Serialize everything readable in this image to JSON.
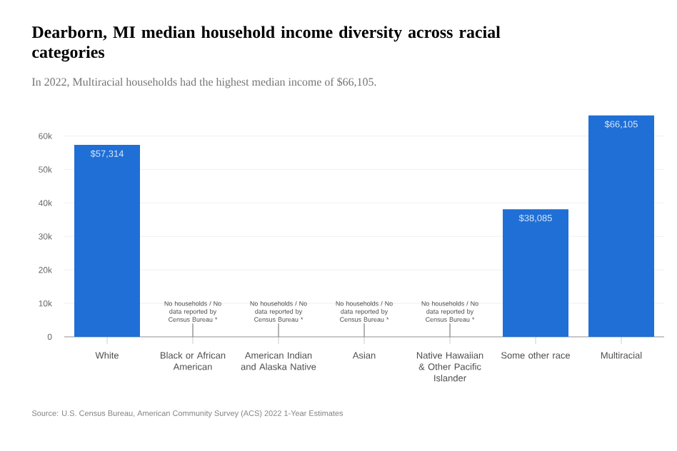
{
  "chart_data": {
    "type": "bar",
    "title": "Dearborn, MI median household income diversity across racial categories",
    "subtitle": "In 2022, Multiracial households had the highest median income of $66,105.",
    "categories": [
      "White",
      "Black or African American",
      "American Indian and Alaska Native",
      "Asian",
      "Native Hawaiian & Other Pacific Islander",
      "Some other race",
      "Multiracial"
    ],
    "values": [
      57314,
      null,
      null,
      null,
      null,
      38085,
      66105
    ],
    "value_labels": [
      "$57,314",
      null,
      null,
      null,
      null,
      "$38,085",
      "$66,105"
    ],
    "color": "#1f6fd6",
    "ylim": [
      0,
      66500
    ],
    "yticks": [
      0,
      {
        "value": 10000,
        "label": "10k"
      },
      {
        "value": 20000,
        "label": "20k"
      },
      {
        "value": 30000,
        "label": "30k"
      },
      {
        "value": 40000,
        "label": "40k"
      },
      {
        "value": 50000,
        "label": "50k"
      },
      {
        "value": 60000,
        "label": "60k"
      }
    ],
    "grid": "y",
    "annotations": [
      "No households / No data reported by Census Bureau *",
      "No households / No data reported by Census Bureau *",
      "No households / No data reported by Census Bureau *",
      "No households / No data reported by Census Bureau *",
      "Source: U.S. Census Bureau, American Community Survey (ACS) 2022 1-Year Estimates"
    ]
  }
}
